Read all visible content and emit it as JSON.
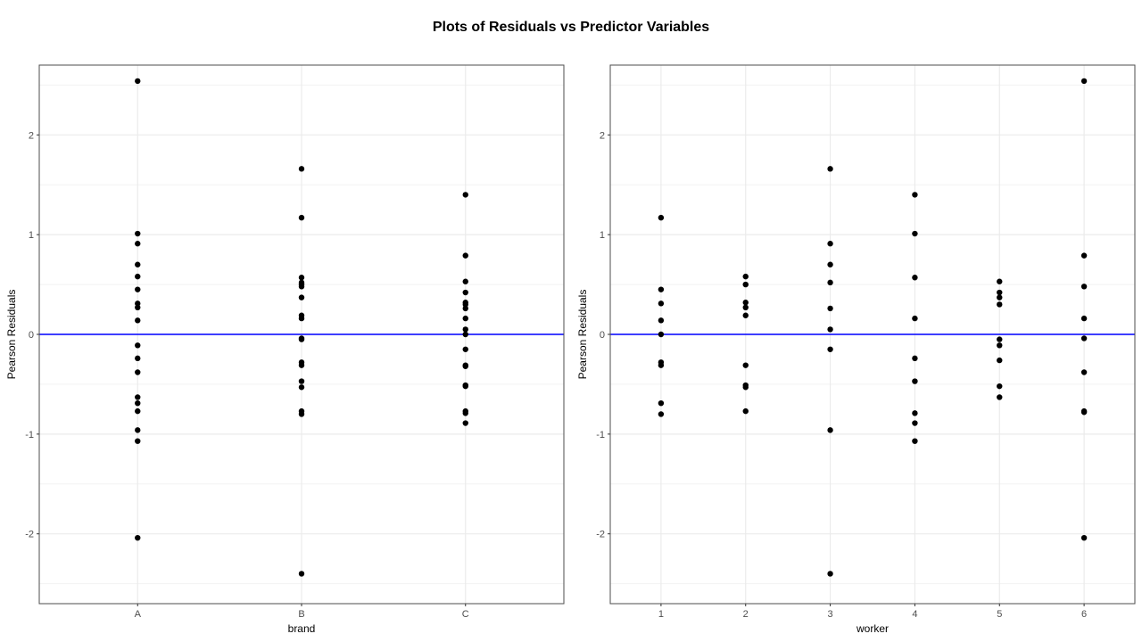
{
  "title": "Plots of Residuals vs Predictor Variables",
  "chart_data": [
    {
      "type": "scatter",
      "xlabel": "brand",
      "ylabel": "Pearson Residuals",
      "categories": [
        "A",
        "B",
        "C"
      ],
      "ylim": [
        -2.7,
        2.7
      ],
      "yticks": [
        -2,
        -1,
        0,
        1,
        2
      ],
      "grid": true,
      "hline": 0,
      "hline_color": "#0000ff",
      "point_color": "#000000",
      "points": {
        "A": [
          2.54,
          1.01,
          0.91,
          0.7,
          0.58,
          0.45,
          0.31,
          0.27,
          0.14,
          -0.11,
          -0.24,
          -0.38,
          -0.63,
          -0.69,
          -0.77,
          -0.96,
          -1.07,
          -2.04
        ],
        "B": [
          1.66,
          1.17,
          0.57,
          0.52,
          0.5,
          0.48,
          0.37,
          0.19,
          0.16,
          -0.04,
          -0.05,
          -0.28,
          -0.31,
          -0.47,
          -0.53,
          -0.77,
          -0.8,
          -2.4
        ],
        "C": [
          1.4,
          0.79,
          0.53,
          0.42,
          0.32,
          0.3,
          0.26,
          0.16,
          0.05,
          0.0,
          -0.15,
          -0.31,
          -0.32,
          -0.51,
          -0.52,
          -0.77,
          -0.79,
          -0.89
        ]
      }
    },
    {
      "type": "scatter",
      "xlabel": "worker",
      "ylabel": "Pearson Residuals",
      "categories": [
        "1",
        "2",
        "3",
        "4",
        "5",
        "6"
      ],
      "ylim": [
        -2.7,
        2.7
      ],
      "yticks": [
        -2,
        -1,
        0,
        1,
        2
      ],
      "grid": true,
      "hline": 0,
      "hline_color": "#0000ff",
      "point_color": "#000000",
      "points": {
        "1": [
          1.17,
          0.45,
          0.31,
          0.14,
          0.0,
          -0.28,
          -0.31,
          -0.69,
          -0.8
        ],
        "2": [
          0.58,
          0.5,
          0.32,
          0.27,
          0.19,
          -0.31,
          -0.51,
          -0.53,
          -0.77
        ],
        "3": [
          1.66,
          0.91,
          0.7,
          0.52,
          0.26,
          0.05,
          -0.15,
          -0.96,
          -2.4
        ],
        "4": [
          1.4,
          1.01,
          0.57,
          0.16,
          -0.24,
          -0.47,
          -0.79,
          -0.89,
          -1.07
        ],
        "5": [
          0.53,
          0.42,
          0.37,
          0.3,
          -0.05,
          -0.11,
          -0.26,
          -0.52,
          -0.63
        ],
        "6": [
          2.54,
          0.79,
          0.48,
          0.16,
          -0.04,
          -0.38,
          -0.77,
          -0.78,
          -2.04
        ]
      }
    }
  ]
}
